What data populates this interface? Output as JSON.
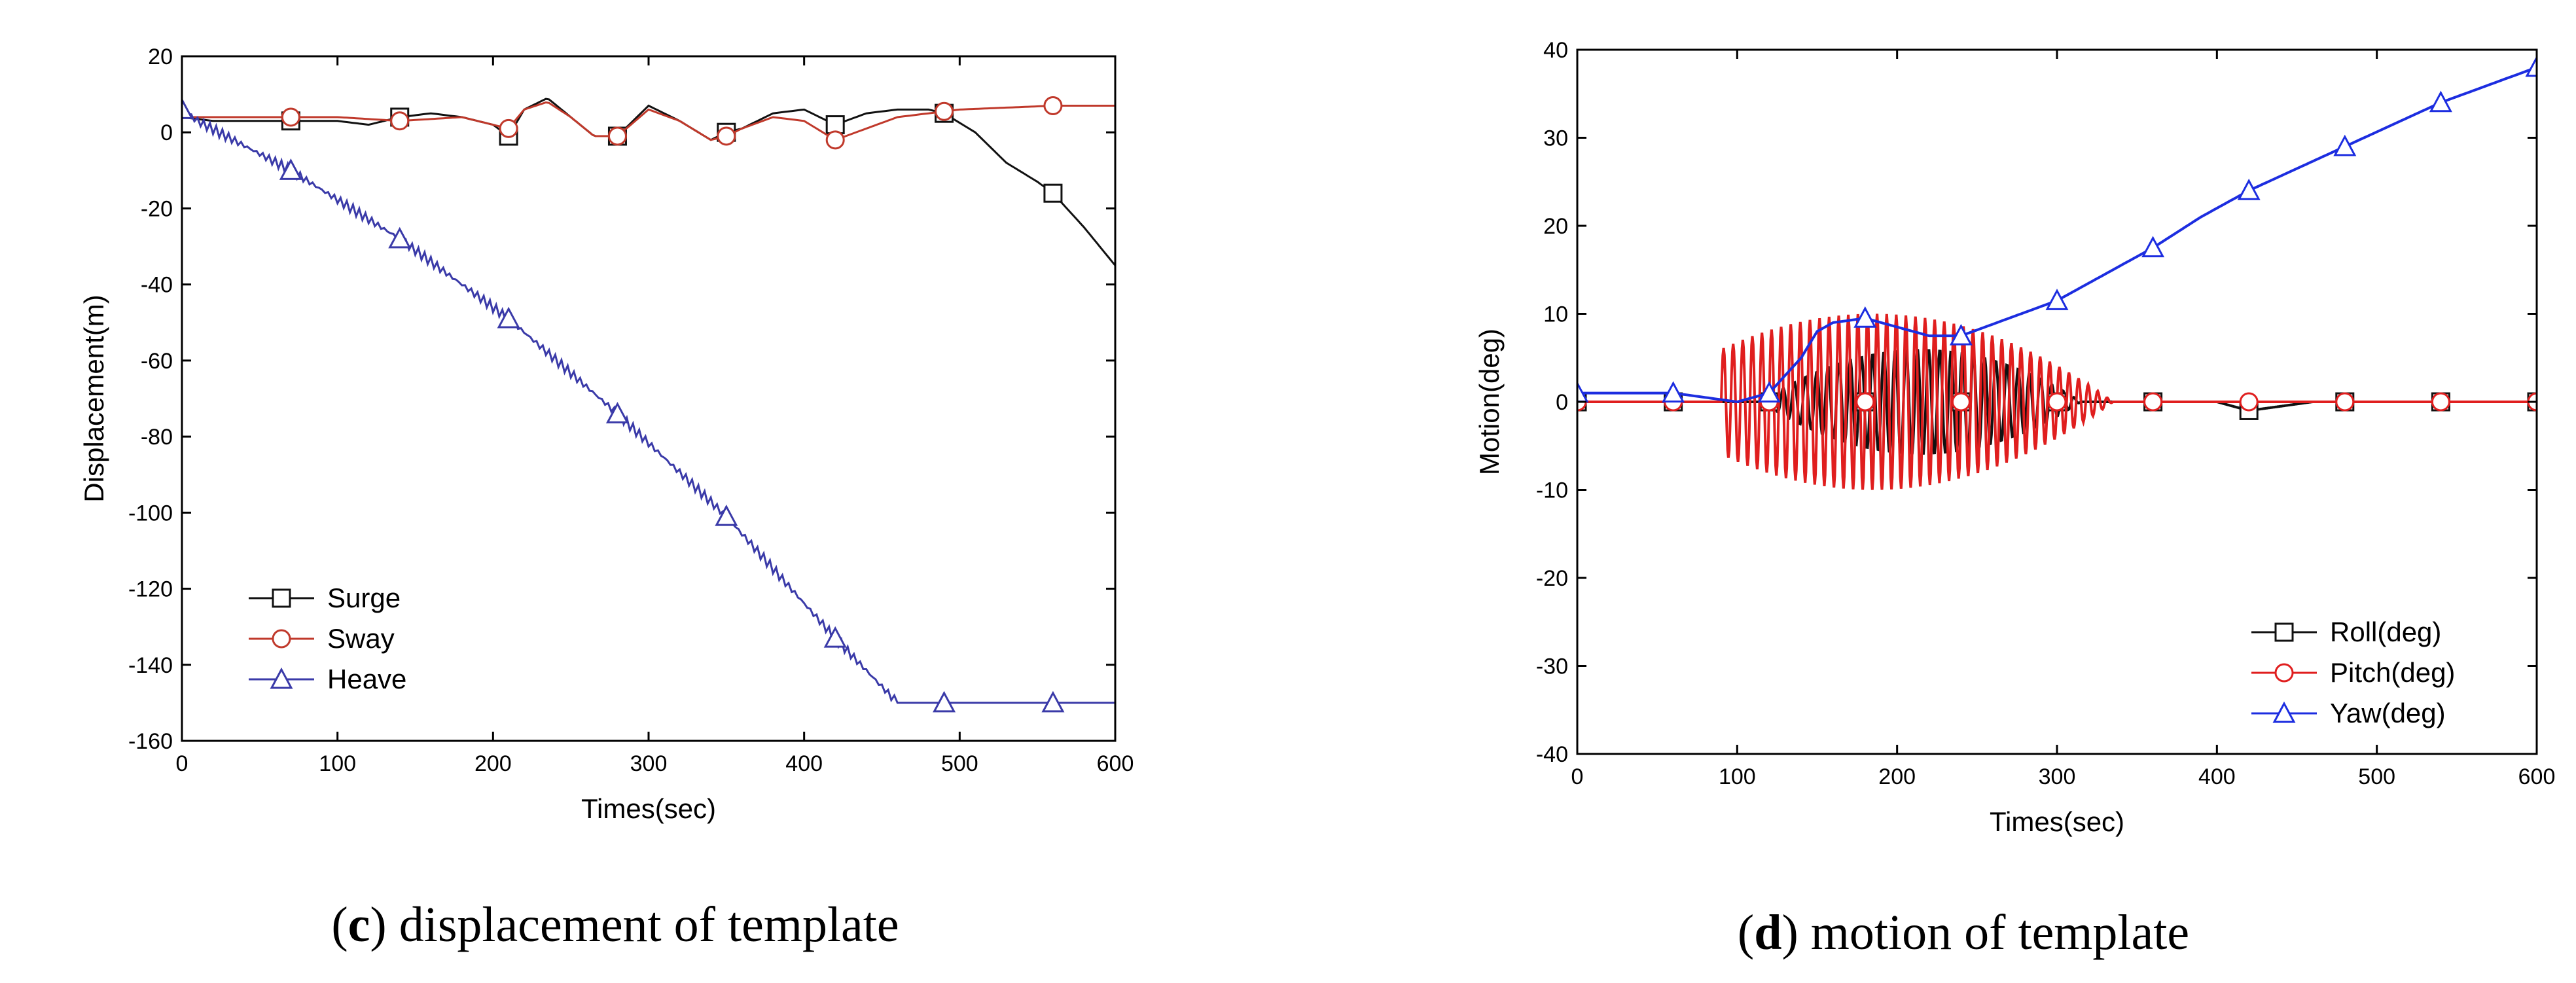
{
  "figure": {
    "captions": [
      {
        "letter": "c",
        "text": " displacement of template"
      },
      {
        "letter": "d",
        "text": " motion of template"
      }
    ]
  },
  "chart_data": [
    {
      "type": "line",
      "title": "",
      "xlabel": "Times(sec)",
      "ylabel": "Displacement(m)",
      "xlim": [
        0,
        600
      ],
      "ylim": [
        -160,
        20
      ],
      "xticks": [
        0,
        100,
        200,
        300,
        400,
        500,
        600
      ],
      "yticks": [
        -160,
        -140,
        -120,
        -100,
        -80,
        -60,
        -40,
        -20,
        0,
        20
      ],
      "legend_position": "bottom-left",
      "series": [
        {
          "name": "Surge",
          "color": "#111111",
          "marker": "square",
          "x": [
            0,
            20,
            40,
            60,
            80,
            100,
            120,
            140,
            160,
            180,
            200,
            210,
            220,
            235,
            250,
            265,
            280,
            300,
            320,
            340,
            350,
            360,
            380,
            400,
            420,
            440,
            460,
            480,
            490,
            510,
            530,
            550,
            560,
            580,
            600
          ],
          "y": [
            4,
            3,
            3,
            3,
            3,
            3,
            2,
            4,
            5,
            4,
            2,
            -1,
            6,
            9,
            4,
            -1,
            -1,
            7,
            3,
            -2,
            0,
            1,
            5,
            6,
            2,
            5,
            6,
            6,
            5,
            0,
            -8,
            -13,
            -16,
            -25,
            -35
          ],
          "marker_x": [
            70,
            140,
            210,
            280,
            350,
            420,
            490,
            560
          ]
        },
        {
          "name": "Sway",
          "color": "#c0392b",
          "marker": "circle",
          "x": [
            0,
            50,
            100,
            140,
            180,
            200,
            210,
            220,
            235,
            250,
            265,
            280,
            300,
            320,
            340,
            350,
            360,
            380,
            400,
            420,
            440,
            460,
            480,
            500,
            530,
            560,
            600
          ],
          "y": [
            4,
            4,
            4,
            3,
            4,
            2,
            1,
            6,
            8,
            4,
            -1,
            -1,
            6,
            3,
            -2,
            -1,
            1,
            4,
            3,
            -2,
            1,
            4,
            5,
            6,
            6.5,
            7,
            7
          ],
          "marker_x": [
            70,
            140,
            210,
            280,
            350,
            420,
            490,
            560
          ]
        },
        {
          "name": "Heave",
          "color": "#3a3aa8",
          "marker": "triangle",
          "x": [
            0,
            10,
            70,
            140,
            210,
            280,
            350,
            420,
            460,
            490,
            560,
            600
          ],
          "y": [
            6,
            3,
            -10,
            -28,
            -49,
            -74,
            -101,
            -133,
            -150,
            -150,
            -150,
            -150
          ],
          "marker_x": [
            0,
            70,
            140,
            210,
            280,
            350,
            420,
            490,
            560
          ]
        }
      ]
    },
    {
      "type": "line",
      "title": "",
      "xlabel": "Times(sec)",
      "ylabel": "Motion(deg)",
      "xlim": [
        0,
        600
      ],
      "ylim": [
        -40,
        40
      ],
      "xticks": [
        0,
        100,
        200,
        300,
        400,
        500,
        600
      ],
      "yticks": [
        -40,
        -30,
        -20,
        -10,
        0,
        10,
        20,
        30,
        40
      ],
      "legend_position": "bottom-right",
      "series": [
        {
          "name": "Roll(deg)",
          "color": "#111111",
          "marker": "square",
          "x": [
            0,
            100,
            150,
            200,
            225,
            250,
            300,
            350,
            400,
            420,
            460,
            600
          ],
          "y": [
            0,
            0,
            0,
            0,
            0,
            0,
            0,
            0,
            0,
            -1,
            0,
            0
          ],
          "osc": {
            "x0": 120,
            "x1": 320,
            "period": 7,
            "peak_x": 215,
            "amp": 6
          },
          "marker_x": [
            0,
            60,
            120,
            180,
            240,
            300,
            360,
            420,
            480,
            540,
            600
          ]
        },
        {
          "name": "Pitch(deg)",
          "color": "#e01e1e",
          "marker": "circle",
          "x": [
            0,
            100,
            200,
            300,
            400,
            460,
            600
          ],
          "y": [
            0,
            0,
            0,
            0,
            0,
            0,
            0
          ],
          "osc": {
            "x0": 90,
            "x1": 390,
            "period": 6,
            "peak_x": 185,
            "amp": 10
          },
          "marker_x": [
            0,
            60,
            120,
            180,
            240,
            300,
            360,
            420,
            480,
            540,
            600
          ]
        },
        {
          "name": "Yaw(deg)",
          "color": "#1c2de0",
          "marker": "triangle",
          "x": [
            0,
            20,
            60,
            100,
            120,
            140,
            150,
            160,
            180,
            200,
            220,
            240,
            270,
            300,
            330,
            360,
            390,
            420,
            450,
            480,
            510,
            540,
            570,
            600
          ],
          "y": [
            1,
            1,
            1,
            0,
            1,
            5,
            8,
            9,
            9.5,
            8.5,
            7.5,
            7.5,
            9.5,
            11.5,
            14.5,
            17.5,
            21,
            24,
            26.5,
            29,
            31.5,
            34,
            36,
            38
          ],
          "marker_x": [
            0,
            60,
            120,
            180,
            240,
            300,
            360,
            420,
            480,
            540,
            600
          ]
        }
      ]
    }
  ]
}
